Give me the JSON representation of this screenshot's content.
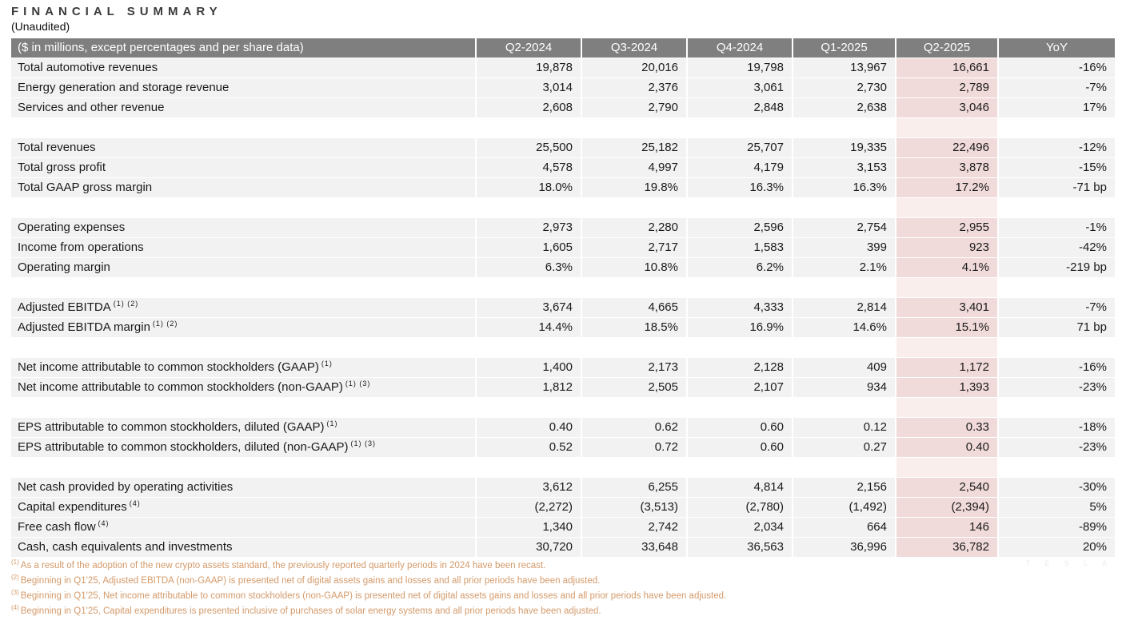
{
  "title": "FINANCIAL SUMMARY",
  "subtitle": "(Unaudited)",
  "watermark": "T E S L A",
  "colors": {
    "header_bg": "#7f7f7f",
    "header_text": "#ffffff",
    "row_bg": "#f2f2f2",
    "highlight_column": "#f1dbda",
    "highlight_spacer": "#faeeed",
    "footnote_text": "#d49a6a"
  },
  "table": {
    "header": {
      "label": "($ in millions, except percentages and per share data)",
      "columns": [
        "Q2-2024",
        "Q3-2024",
        "Q4-2024",
        "Q1-2025",
        "Q2-2025",
        "YoY"
      ]
    },
    "rows": [
      {
        "type": "data",
        "label": "Total automotive revenues",
        "sup": "",
        "values": [
          "19,878",
          "20,016",
          "19,798",
          "13,967",
          "16,661",
          "-16%"
        ]
      },
      {
        "type": "data",
        "label": "Energy generation and storage revenue",
        "sup": "",
        "values": [
          "3,014",
          "2,376",
          "3,061",
          "2,730",
          "2,789",
          "-7%"
        ]
      },
      {
        "type": "data",
        "label": "Services and other revenue",
        "sup": "",
        "values": [
          "2,608",
          "2,790",
          "2,848",
          "2,638",
          "3,046",
          "17%"
        ]
      },
      {
        "type": "spacer"
      },
      {
        "type": "data",
        "label": "Total revenues",
        "sup": "",
        "values": [
          "25,500",
          "25,182",
          "25,707",
          "19,335",
          "22,496",
          "-12%"
        ]
      },
      {
        "type": "data",
        "label": "Total gross profit",
        "sup": "",
        "values": [
          "4,578",
          "4,997",
          "4,179",
          "3,153",
          "3,878",
          "-15%"
        ]
      },
      {
        "type": "data",
        "label": "Total GAAP gross margin",
        "sup": "",
        "values": [
          "18.0%",
          "19.8%",
          "16.3%",
          "16.3%",
          "17.2%",
          "-71 bp"
        ]
      },
      {
        "type": "spacer"
      },
      {
        "type": "data",
        "label": "Operating expenses",
        "sup": "",
        "values": [
          "2,973",
          "2,280",
          "2,596",
          "2,754",
          "2,955",
          "-1%"
        ]
      },
      {
        "type": "data",
        "label": "Income from operations",
        "sup": "",
        "values": [
          "1,605",
          "2,717",
          "1,583",
          "399",
          "923",
          "-42%"
        ]
      },
      {
        "type": "data",
        "label": "Operating margin",
        "sup": "",
        "values": [
          "6.3%",
          "10.8%",
          "6.2%",
          "2.1%",
          "4.1%",
          "-219 bp"
        ]
      },
      {
        "type": "spacer"
      },
      {
        "type": "data",
        "label": "Adjusted EBITDA",
        "sup": "(1) (2)",
        "values": [
          "3,674",
          "4,665",
          "4,333",
          "2,814",
          "3,401",
          "-7%"
        ]
      },
      {
        "type": "data",
        "label": "Adjusted EBITDA margin",
        "sup": "(1) (2)",
        "values": [
          "14.4%",
          "18.5%",
          "16.9%",
          "14.6%",
          "15.1%",
          "71 bp"
        ]
      },
      {
        "type": "spacer"
      },
      {
        "type": "data",
        "label": "Net income attributable to common stockholders (GAAP)",
        "sup": "(1)",
        "values": [
          "1,400",
          "2,173",
          "2,128",
          "409",
          "1,172",
          "-16%"
        ]
      },
      {
        "type": "data",
        "label": "Net income attributable to common stockholders (non-GAAP)",
        "sup": "(1) (3)",
        "values": [
          "1,812",
          "2,505",
          "2,107",
          "934",
          "1,393",
          "-23%"
        ]
      },
      {
        "type": "spacer"
      },
      {
        "type": "data",
        "label": "EPS attributable to common stockholders, diluted (GAAP)",
        "sup": "(1)",
        "values": [
          "0.40",
          "0.62",
          "0.60",
          "0.12",
          "0.33",
          "-18%"
        ]
      },
      {
        "type": "data",
        "label": "EPS attributable to common stockholders, diluted (non-GAAP)",
        "sup": "(1) (3)",
        "values": [
          "0.52",
          "0.72",
          "0.60",
          "0.27",
          "0.40",
          "-23%"
        ]
      },
      {
        "type": "spacer"
      },
      {
        "type": "data",
        "label": "Net cash provided by operating activities",
        "sup": "",
        "values": [
          "3,612",
          "6,255",
          "4,814",
          "2,156",
          "2,540",
          "-30%"
        ]
      },
      {
        "type": "data",
        "label": "Capital expenditures",
        "sup": "(4)",
        "values": [
          "(2,272)",
          "(3,513)",
          "(2,780)",
          "(1,492)",
          "(2,394)",
          "5%"
        ]
      },
      {
        "type": "data",
        "label": "Free cash flow",
        "sup": "(4)",
        "values": [
          "1,340",
          "2,742",
          "2,034",
          "664",
          "146",
          "-89%"
        ]
      },
      {
        "type": "data",
        "label": "Cash, cash equivalents and investments",
        "sup": "",
        "values": [
          "30,720",
          "33,648",
          "36,563",
          "36,996",
          "36,782",
          "20%"
        ]
      }
    ]
  },
  "footnotes": [
    {
      "marker": "(1)",
      "text": "As a result of the adoption of the new crypto assets standard, the previously reported quarterly periods in 2024 have been recast."
    },
    {
      "marker": "(2)",
      "text": "Beginning in Q1'25, Adjusted EBITDA (non-GAAP) is presented net of digital assets gains and losses and all prior periods have been adjusted."
    },
    {
      "marker": "(3)",
      "text": "Beginning in Q1'25, Net income attributable to common stockholders (non-GAAP) is presented net of digital assets gains and losses and all prior periods have been adjusted."
    },
    {
      "marker": "(4)",
      "text": "Beginning in Q1'25, Capital expenditures is presented inclusive of purchases of solar energy systems and all prior periods have been adjusted."
    }
  ]
}
